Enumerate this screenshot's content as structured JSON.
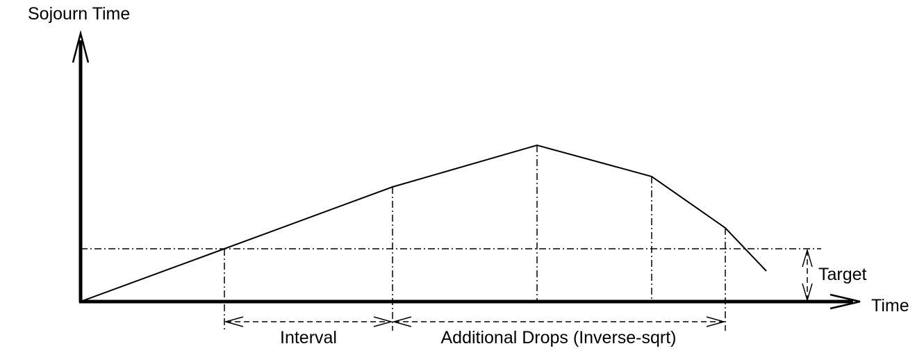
{
  "diagram": {
    "y_axis_label": "Sojourn Time",
    "x_axis_label": "Time",
    "target_label": "Target",
    "interval_label": "Interval",
    "additional_drops_label": "Additional Drops (Inverse-sqrt)"
  },
  "colors": {
    "stroke": "#000000",
    "background": "#ffffff"
  }
}
